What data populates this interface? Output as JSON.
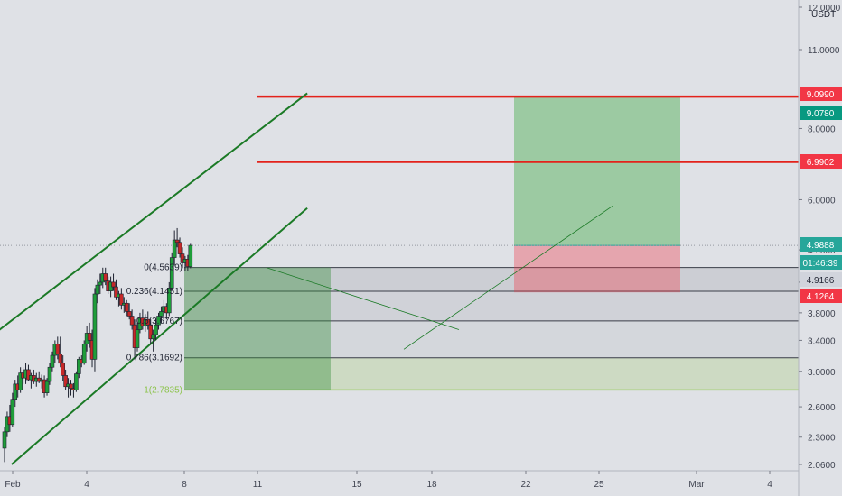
{
  "chart_data": {
    "type": "candlestick",
    "unit": "USDT",
    "y_axis": {
      "scale": "log",
      "ticks": [
        "2.0600",
        "2.3000",
        "2.6000",
        "3.0000",
        "3.4000",
        "3.8000",
        "4.3000",
        "4.9000",
        "6.0000",
        "8.0000",
        "11.0000",
        "12.0000"
      ]
    },
    "x_axis": {
      "ticks": [
        "Feb",
        "4",
        "8",
        "11",
        "15",
        "18",
        "22",
        "25",
        "Mar",
        "4"
      ]
    },
    "price_badges": [
      {
        "label": "9.0990",
        "value": 9.099,
        "color": "#f23645"
      },
      {
        "label": "9.0780",
        "value": 9.078,
        "color": "#089981"
      },
      {
        "label": "6.9902",
        "value": 6.9902,
        "color": "#f23645"
      },
      {
        "label": "4.9888",
        "value": 4.9888,
        "color": "#26a69a"
      },
      {
        "label": "01:46:39",
        "value": 4.72,
        "color": "#26a69a"
      },
      {
        "label": "4.9166",
        "value": 4.9166,
        "color": "#d1d4dc"
      },
      {
        "label": "4.1264",
        "value": 4.1264,
        "color": "#f23645"
      }
    ],
    "fib_levels": [
      {
        "label": "0(4.5639)",
        "value": 4.5639
      },
      {
        "label": "0.236(4.1451)",
        "value": 4.1451
      },
      {
        "label": "0.5(3.6767)",
        "value": 3.6767
      },
      {
        "label": "0.786(3.1692)",
        "value": 3.1692
      },
      {
        "label": "1(2.7835)",
        "value": 2.7835
      }
    ],
    "horizontal_lines": [
      9.099,
      6.9902
    ],
    "position": {
      "entry": 4.9888,
      "target": 9.078,
      "stop": 4.1264
    },
    "candles": [
      {
        "t": 0,
        "o": 2.2,
        "h": 2.4,
        "l": 2.08,
        "c": 2.35
      },
      {
        "t": 0.3,
        "o": 2.35,
        "h": 2.55,
        "l": 2.3,
        "c": 2.5
      },
      {
        "t": 0.6,
        "o": 2.5,
        "h": 2.62,
        "l": 2.35,
        "c": 2.42
      },
      {
        "t": 0.9,
        "o": 2.42,
        "h": 2.75,
        "l": 2.4,
        "c": 2.68
      },
      {
        "t": 1.2,
        "o": 2.68,
        "h": 2.9,
        "l": 2.6,
        "c": 2.85
      },
      {
        "t": 1.5,
        "o": 2.85,
        "h": 2.95,
        "l": 2.7,
        "c": 2.78
      },
      {
        "t": 1.8,
        "o": 2.78,
        "h": 3.05,
        "l": 2.75,
        "c": 2.98
      },
      {
        "t": 2.1,
        "o": 2.98,
        "h": 3.05,
        "l": 2.85,
        "c": 2.92
      },
      {
        "t": 2.4,
        "o": 2.92,
        "h": 3.1,
        "l": 2.85,
        "c": 3.02
      },
      {
        "t": 2.7,
        "o": 3.02,
        "h": 3.08,
        "l": 2.88,
        "c": 2.9
      },
      {
        "t": 3.0,
        "o": 2.9,
        "h": 2.98,
        "l": 2.8,
        "c": 2.95
      },
      {
        "t": 3.3,
        "o": 2.95,
        "h": 3.02,
        "l": 2.85,
        "c": 2.88
      },
      {
        "t": 3.6,
        "o": 2.88,
        "h": 2.98,
        "l": 2.82,
        "c": 2.92
      },
      {
        "t": 3.9,
        "o": 2.92,
        "h": 3.0,
        "l": 2.86,
        "c": 2.88
      },
      {
        "t": 4.2,
        "o": 2.88,
        "h": 2.96,
        "l": 2.8,
        "c": 2.9
      },
      {
        "t": 4.5,
        "o": 2.9,
        "h": 2.95,
        "l": 2.7,
        "c": 2.75
      },
      {
        "t": 4.8,
        "o": 2.75,
        "h": 2.92,
        "l": 2.72,
        "c": 2.88
      },
      {
        "t": 5.1,
        "o": 2.88,
        "h": 3.1,
        "l": 2.84,
        "c": 3.05
      },
      {
        "t": 5.4,
        "o": 3.05,
        "h": 3.25,
        "l": 3.0,
        "c": 3.2
      },
      {
        "t": 5.7,
        "o": 3.2,
        "h": 3.4,
        "l": 3.1,
        "c": 3.35
      },
      {
        "t": 6.0,
        "o": 3.35,
        "h": 3.45,
        "l": 3.15,
        "c": 3.22
      },
      {
        "t": 6.3,
        "o": 3.22,
        "h": 3.45,
        "l": 3.05,
        "c": 3.1
      },
      {
        "t": 6.6,
        "o": 3.1,
        "h": 3.2,
        "l": 2.88,
        "c": 2.95
      },
      {
        "t": 6.9,
        "o": 2.95,
        "h": 3.02,
        "l": 2.78,
        "c": 2.82
      },
      {
        "t": 7.2,
        "o": 2.82,
        "h": 2.92,
        "l": 2.7,
        "c": 2.85
      },
      {
        "t": 7.5,
        "o": 2.85,
        "h": 2.9,
        "l": 2.72,
        "c": 2.8
      },
      {
        "t": 7.8,
        "o": 2.8,
        "h": 2.86,
        "l": 2.7,
        "c": 2.78
      },
      {
        "t": 8.1,
        "o": 2.78,
        "h": 3.0,
        "l": 2.76,
        "c": 2.97
      },
      {
        "t": 8.4,
        "o": 2.97,
        "h": 3.18,
        "l": 2.92,
        "c": 3.15
      },
      {
        "t": 8.7,
        "o": 3.15,
        "h": 3.2,
        "l": 3.05,
        "c": 3.1
      },
      {
        "t": 9.0,
        "o": 3.1,
        "h": 3.4,
        "l": 3.08,
        "c": 3.35
      },
      {
        "t": 9.3,
        "o": 3.35,
        "h": 3.6,
        "l": 3.25,
        "c": 3.5
      },
      {
        "t": 9.6,
        "o": 3.5,
        "h": 3.65,
        "l": 3.3,
        "c": 3.4
      },
      {
        "t": 9.9,
        "o": 3.4,
        "h": 3.55,
        "l": 3.05,
        "c": 3.15
      },
      {
        "t": 10.2,
        "o": 3.15,
        "h": 4.2,
        "l": 3.0,
        "c": 4.1
      },
      {
        "t": 10.5,
        "o": 4.1,
        "h": 4.35,
        "l": 3.95,
        "c": 4.25
      },
      {
        "t": 10.8,
        "o": 4.25,
        "h": 4.45,
        "l": 4.1,
        "c": 4.3
      },
      {
        "t": 11.1,
        "o": 4.3,
        "h": 4.56,
        "l": 4.2,
        "c": 4.45
      },
      {
        "t": 11.4,
        "o": 4.45,
        "h": 4.56,
        "l": 4.25,
        "c": 4.32
      },
      {
        "t": 11.7,
        "o": 4.32,
        "h": 4.4,
        "l": 4.1,
        "c": 4.15
      },
      {
        "t": 12.0,
        "o": 4.15,
        "h": 4.4,
        "l": 4.05,
        "c": 4.3
      },
      {
        "t": 12.3,
        "o": 4.3,
        "h": 4.45,
        "l": 4.15,
        "c": 4.22
      },
      {
        "t": 12.6,
        "o": 4.22,
        "h": 4.35,
        "l": 4.0,
        "c": 4.05
      },
      {
        "t": 12.9,
        "o": 4.05,
        "h": 4.15,
        "l": 3.9,
        "c": 4.1
      },
      {
        "t": 13.2,
        "o": 4.1,
        "h": 4.2,
        "l": 3.85,
        "c": 3.92
      },
      {
        "t": 13.5,
        "o": 3.92,
        "h": 4.05,
        "l": 3.8,
        "c": 3.95
      },
      {
        "t": 13.8,
        "o": 3.95,
        "h": 4.0,
        "l": 3.75,
        "c": 3.82
      },
      {
        "t": 14.1,
        "o": 3.82,
        "h": 3.95,
        "l": 3.7,
        "c": 3.75
      },
      {
        "t": 14.4,
        "o": 3.75,
        "h": 3.85,
        "l": 3.55,
        "c": 3.62
      },
      {
        "t": 14.7,
        "o": 3.62,
        "h": 3.7,
        "l": 3.15,
        "c": 3.3
      },
      {
        "t": 15.0,
        "o": 3.3,
        "h": 3.65,
        "l": 3.25,
        "c": 3.55
      },
      {
        "t": 15.3,
        "o": 3.55,
        "h": 3.8,
        "l": 3.5,
        "c": 3.72
      },
      {
        "t": 15.6,
        "o": 3.72,
        "h": 3.85,
        "l": 3.55,
        "c": 3.6
      },
      {
        "t": 15.9,
        "o": 3.6,
        "h": 3.78,
        "l": 3.52,
        "c": 3.7
      },
      {
        "t": 16.2,
        "o": 3.7,
        "h": 3.82,
        "l": 3.55,
        "c": 3.62
      },
      {
        "t": 16.5,
        "o": 3.62,
        "h": 3.7,
        "l": 3.35,
        "c": 3.42
      },
      {
        "t": 16.8,
        "o": 3.42,
        "h": 3.55,
        "l": 3.25,
        "c": 3.48
      },
      {
        "t": 17.1,
        "o": 3.48,
        "h": 3.7,
        "l": 3.4,
        "c": 3.62
      },
      {
        "t": 17.4,
        "o": 3.62,
        "h": 3.8,
        "l": 3.55,
        "c": 3.75
      },
      {
        "t": 17.7,
        "o": 3.75,
        "h": 3.9,
        "l": 3.65,
        "c": 3.82
      },
      {
        "t": 18.0,
        "o": 3.82,
        "h": 4.0,
        "l": 3.75,
        "c": 3.9
      },
      {
        "t": 18.3,
        "o": 3.9,
        "h": 3.95,
        "l": 3.7,
        "c": 3.8
      },
      {
        "t": 18.6,
        "o": 3.8,
        "h": 4.3,
        "l": 3.75,
        "c": 4.2
      },
      {
        "t": 18.9,
        "o": 4.2,
        "h": 4.85,
        "l": 4.15,
        "c": 4.75
      },
      {
        "t": 19.2,
        "o": 4.75,
        "h": 5.3,
        "l": 4.6,
        "c": 5.1
      },
      {
        "t": 19.5,
        "o": 5.1,
        "h": 5.35,
        "l": 4.95,
        "c": 5.05
      },
      {
        "t": 19.8,
        "o": 5.05,
        "h": 5.15,
        "l": 4.75,
        "c": 4.82
      },
      {
        "t": 20.1,
        "o": 4.82,
        "h": 4.95,
        "l": 4.55,
        "c": 4.65
      },
      {
        "t": 20.4,
        "o": 4.65,
        "h": 4.78,
        "l": 4.5,
        "c": 4.72
      },
      {
        "t": 20.7,
        "o": 4.72,
        "h": 4.8,
        "l": 4.5,
        "c": 4.58
      },
      {
        "t": 21.0,
        "o": 4.58,
        "h": 5.02,
        "l": 4.55,
        "c": 4.99
      }
    ],
    "trend_channel": {
      "upper": [
        {
          "t": -3,
          "v": 3.3
        },
        {
          "t": 34.4,
          "v": 9.22
        }
      ],
      "lower": [
        {
          "t": 1,
          "v": 2.06
        },
        {
          "t": 34.4,
          "v": 5.8
        }
      ]
    }
  }
}
